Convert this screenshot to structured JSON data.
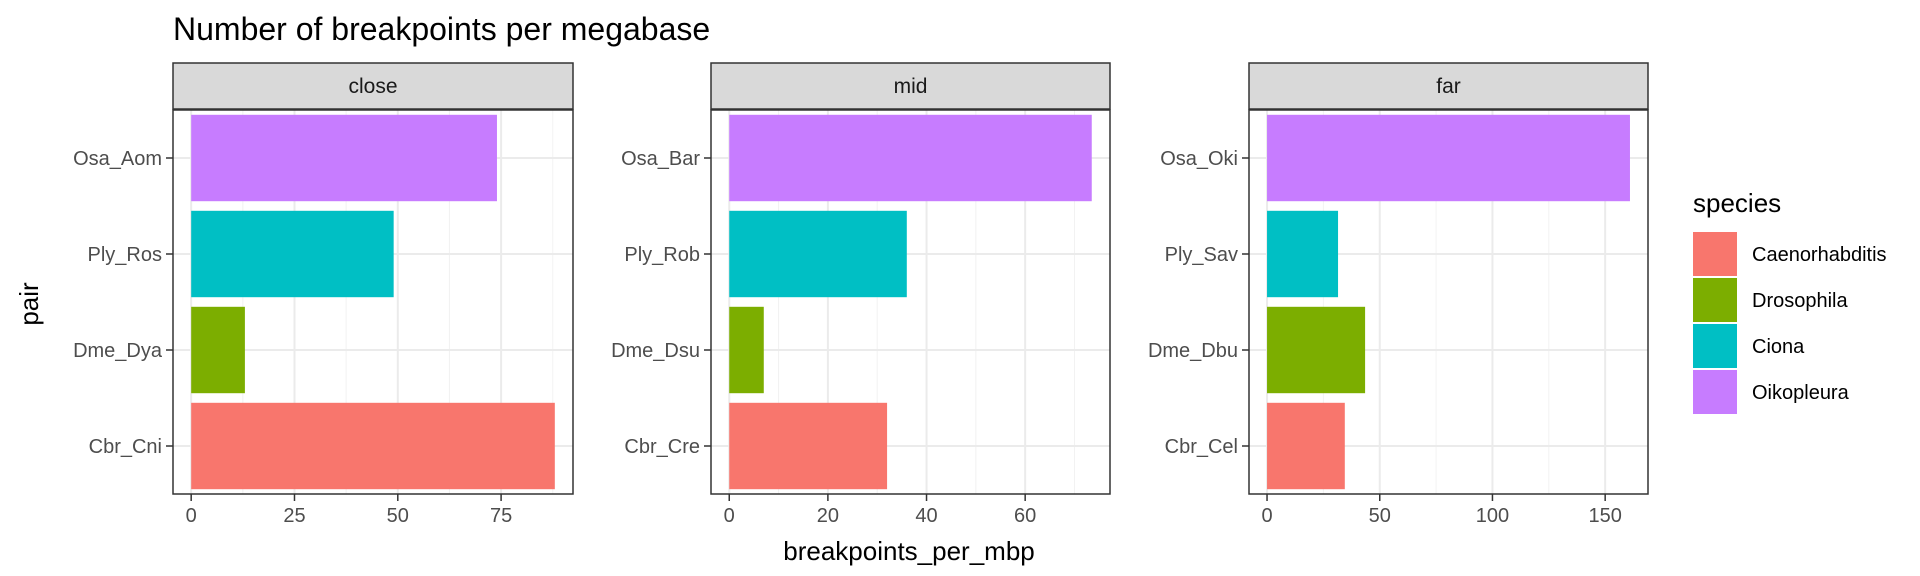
{
  "chart_data": {
    "type": "bar",
    "orientation": "horizontal",
    "title": "Number of breakpoints per megabase",
    "xlabel": "breakpoints_per_mbp",
    "ylabel": "pair",
    "grid": true,
    "legend": {
      "title": "species",
      "placement": "right",
      "entries": [
        {
          "name": "Caenorhabditis",
          "color": "#F8766D"
        },
        {
          "name": "Drosophila",
          "color": "#7CAE00"
        },
        {
          "name": "Ciona",
          "color": "#00BFC4"
        },
        {
          "name": "Oikopleura",
          "color": "#C77CFF"
        }
      ]
    },
    "facets": [
      {
        "label": "close",
        "xlim": [
          -4.4,
          92.4
        ],
        "xticks": [
          0,
          25,
          50,
          75
        ],
        "bars": [
          {
            "category": "Osa_Aom",
            "species": "Oikopleura",
            "value": 74
          },
          {
            "category": "Ply_Ros",
            "species": "Ciona",
            "value": 49
          },
          {
            "category": "Dme_Dya",
            "species": "Drosophila",
            "value": 13
          },
          {
            "category": "Cbr_Cni",
            "species": "Caenorhabditis",
            "value": 88
          }
        ]
      },
      {
        "label": "mid",
        "xlim": [
          -3.7,
          77.2
        ],
        "xticks": [
          0,
          20,
          40,
          60
        ],
        "bars": [
          {
            "category": "Osa_Bar",
            "species": "Oikopleura",
            "value": 73.5
          },
          {
            "category": "Ply_Rob",
            "species": "Ciona",
            "value": 36
          },
          {
            "category": "Dme_Dsu",
            "species": "Drosophila",
            "value": 7
          },
          {
            "category": "Cbr_Cre",
            "species": "Caenorhabditis",
            "value": 32
          }
        ]
      },
      {
        "label": "far",
        "xlim": [
          -8,
          169
        ],
        "xticks": [
          0,
          50,
          100,
          150
        ],
        "bars": [
          {
            "category": "Osa_Oki",
            "species": "Oikopleura",
            "value": 161
          },
          {
            "category": "Ply_Sav",
            "species": "Ciona",
            "value": 31.5
          },
          {
            "category": "Dme_Dbu",
            "species": "Drosophila",
            "value": 43.5
          },
          {
            "category": "Cbr_Cel",
            "species": "Caenorhabditis",
            "value": 34.5
          }
        ]
      }
    ]
  }
}
